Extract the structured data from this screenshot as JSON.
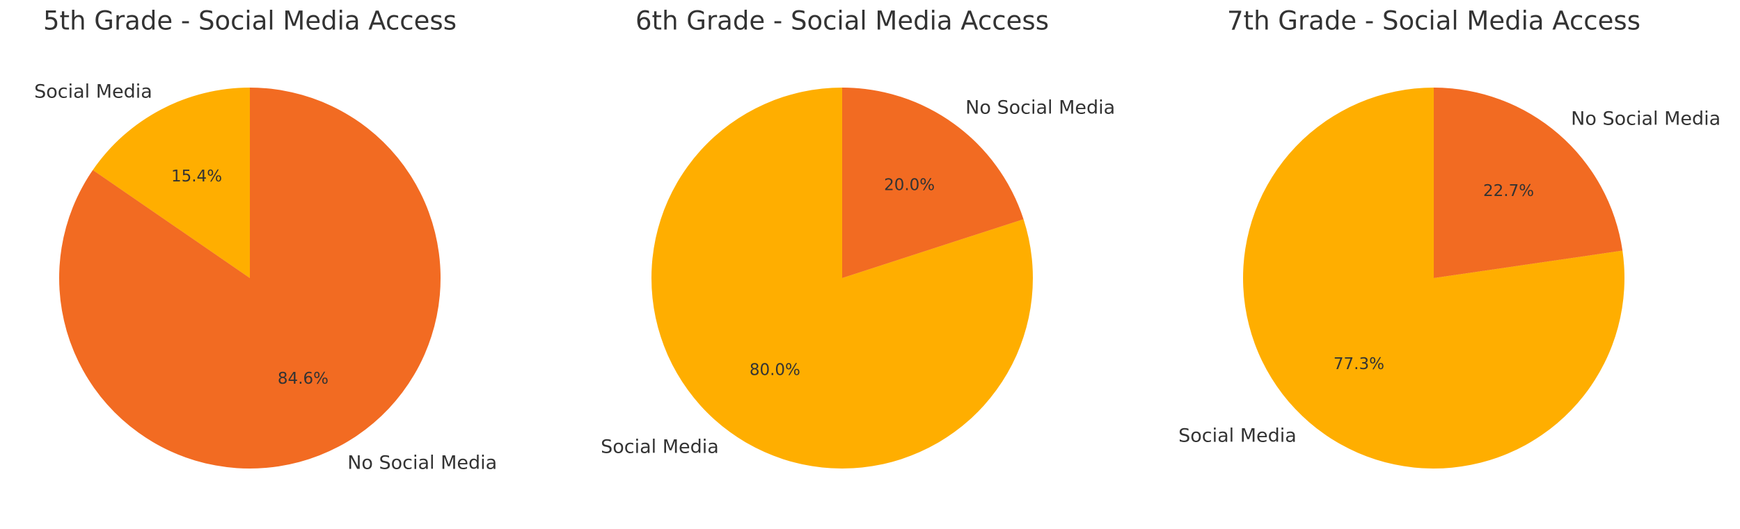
{
  "chart_data": [
    {
      "type": "pie",
      "title": "5th Grade - Social Media Access",
      "categories": [
        "Social Media",
        "No Social Media"
      ],
      "values": [
        15.4,
        84.6
      ],
      "value_labels": [
        "15.4%",
        "84.6%"
      ],
      "colors": [
        "#ffae00",
        "#f26b22"
      ]
    },
    {
      "type": "pie",
      "title": "6th Grade - Social Media Access",
      "categories": [
        "Social Media",
        "No Social Media"
      ],
      "values": [
        80.0,
        20.0
      ],
      "value_labels": [
        "80.0%",
        "20.0%"
      ],
      "colors": [
        "#ffae00",
        "#f26b22"
      ]
    },
    {
      "type": "pie",
      "title": "7th Grade - Social Media Access",
      "categories": [
        "Social Media",
        "No Social Media"
      ],
      "values": [
        77.3,
        22.7
      ],
      "value_labels": [
        "77.3%",
        "22.7%"
      ],
      "colors": [
        "#ffae00",
        "#f26b22"
      ]
    }
  ]
}
